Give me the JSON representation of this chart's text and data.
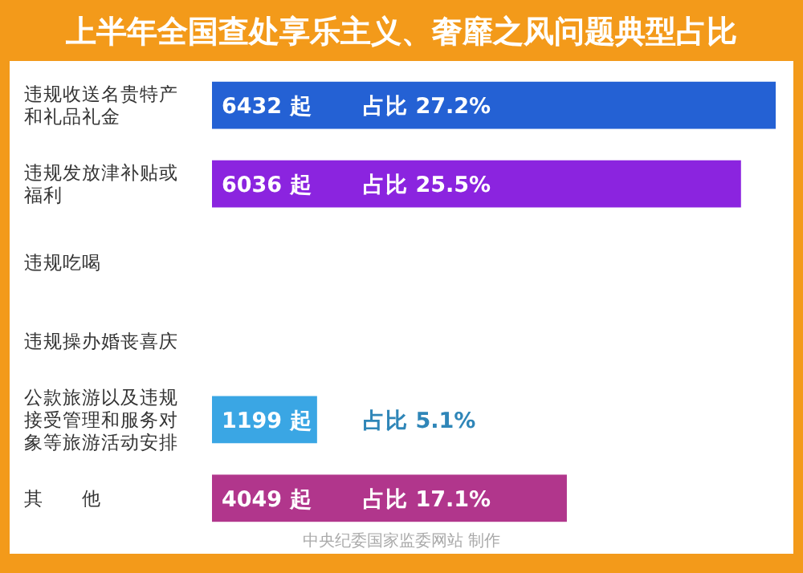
{
  "chart_data": {
    "type": "bar",
    "orientation": "horizontal",
    "title": "上半年全国查处享乐主义、奢靡之风问题典型占比",
    "categories": [
      "违规收送名贵特产和礼品礼金",
      "违规发放津补贴或福利",
      "违规吃喝",
      "违规操办婚丧喜庆",
      "公款旅游以及违规接受管理和服务对象等旅游活动安排",
      "其　　他"
    ],
    "values": [
      6432,
      6036,
      null,
      null,
      1199,
      4049
    ],
    "colors": [
      "#2461d4",
      "#8b24df",
      null,
      null,
      "#3aa6e4",
      "#b1368c"
    ],
    "value_labels": [
      "6432 起",
      "6036 起",
      null,
      null,
      "1199 起",
      "4049 起"
    ],
    "annotations": [
      "占比 27.2%",
      "占比 25.5%",
      "占比 5.1%",
      "占比 17.1%",
      "中央纪委国家监委网站 制作"
    ]
  }
}
